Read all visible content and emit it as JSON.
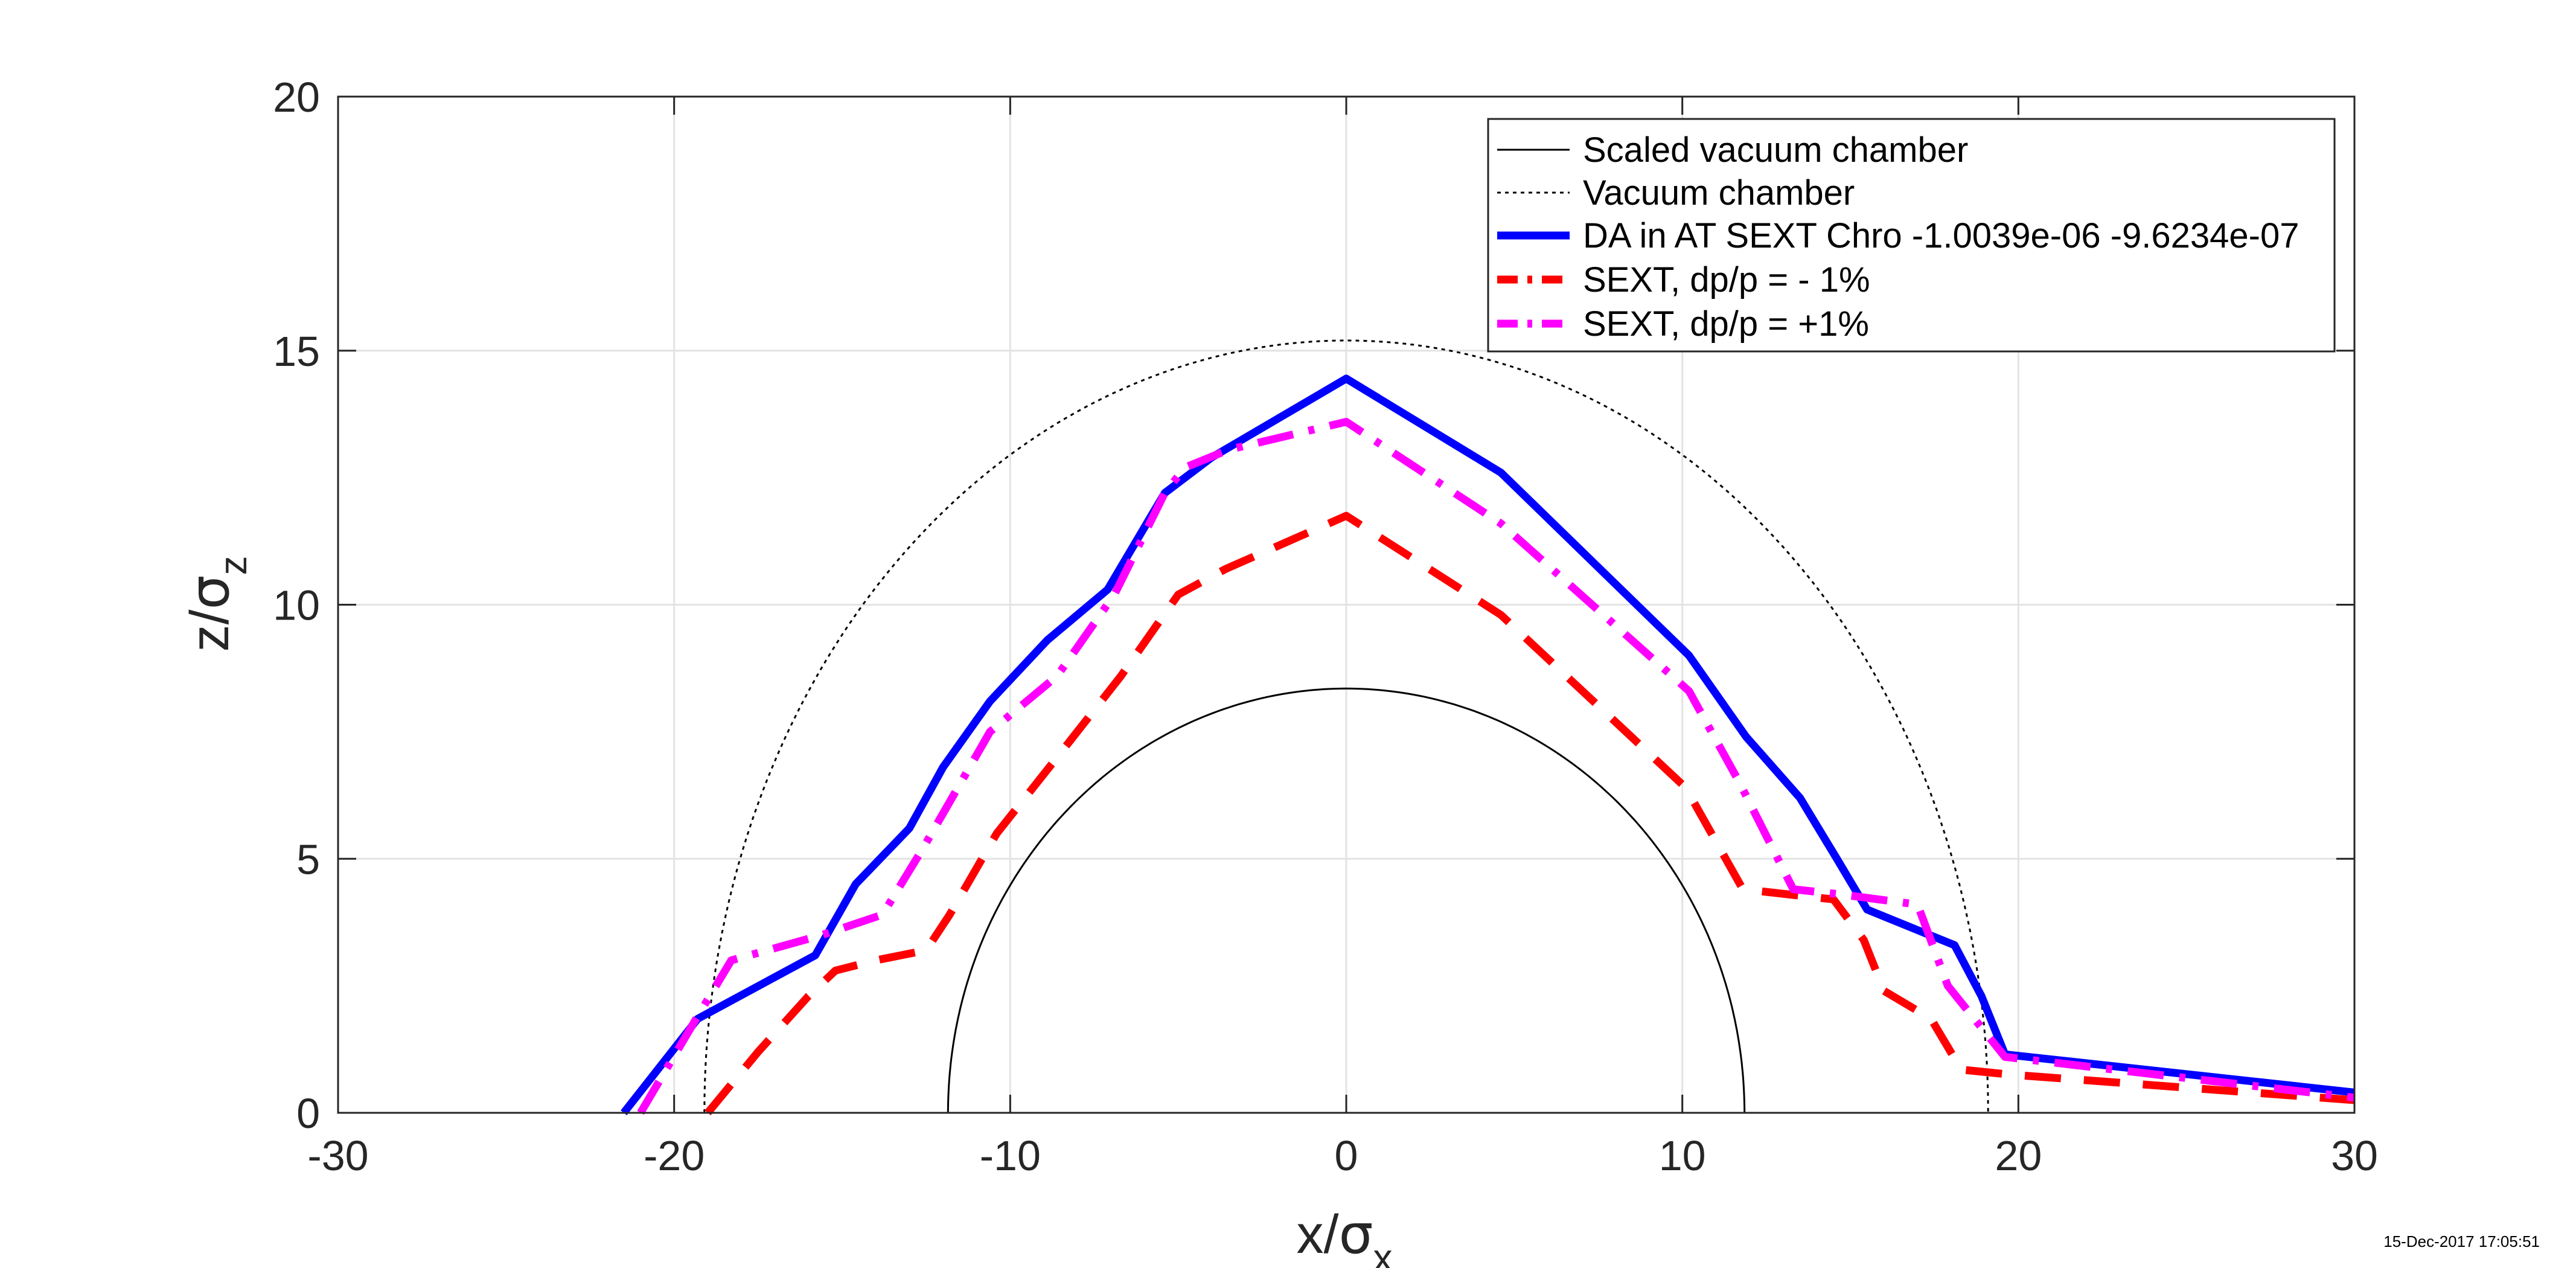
{
  "timestamp": "15-Dec-2017 17:05:51",
  "chart_data": {
    "type": "line",
    "title": "",
    "xlabel": "x/",
    "xlabel_symbol": "σ",
    "xlabel_sub": "x",
    "ylabel": "z/",
    "ylabel_symbol": "σ",
    "ylabel_sub": "z",
    "xlim": [
      -30,
      30
    ],
    "ylim": [
      0,
      20
    ],
    "xticks": [
      -30,
      -20,
      -10,
      0,
      10,
      20,
      30
    ],
    "yticks": [
      0,
      5,
      10,
      15,
      20
    ],
    "xtick_labels": [
      "-30",
      "-20",
      "-10",
      "0",
      "10",
      "20",
      "30"
    ],
    "ytick_labels": [
      "0",
      "5",
      "10",
      "15",
      "20"
    ],
    "grid": true,
    "legend_position": "top-right",
    "series": [
      {
        "name": "Scaled vacuum chamber",
        "color": "#000000",
        "style": "solid",
        "shape": "half-ellipse",
        "semi_axis_x": 11.85,
        "semi_axis_z": 8.35
      },
      {
        "name": "Vacuum chamber",
        "color": "#000000",
        "style": "dotted",
        "shape": "half-ellipse",
        "semi_axis_x": 19.1,
        "semi_axis_z": 15.2
      },
      {
        "name": "DA in AT SEXT Chro -1.0039e-06 -9.6234e-07",
        "color": "#0000FF",
        "style": "solid-thick",
        "x": [
          -21.5,
          -19.3,
          -15.8,
          -14.6,
          -13.0,
          -12.0,
          -10.6,
          -8.9,
          -7.1,
          -5.4,
          -4.0,
          0.0,
          4.6,
          10.2,
          11.9,
          13.5,
          14.6,
          15.5,
          18.1,
          18.9,
          19.6,
          30.0
        ],
        "y": [
          0.0,
          1.85,
          3.1,
          4.5,
          5.6,
          6.8,
          8.1,
          9.3,
          10.3,
          12.2,
          12.9,
          14.45,
          12.6,
          9.0,
          7.4,
          6.2,
          5.0,
          4.0,
          3.3,
          2.3,
          1.15,
          0.4
        ]
      },
      {
        "name": "SEXT, dp/p = - 1%",
        "color": "#FF0000",
        "style": "dashed",
        "x": [
          -19.0,
          -17.5,
          -16.0,
          -15.2,
          -14.0,
          -12.5,
          -11.8,
          -10.4,
          -8.6,
          -6.7,
          -5.0,
          -3.6,
          0.0,
          4.6,
          8.0,
          10.1,
          11.8,
          14.5,
          15.4,
          16.0,
          17.4,
          18.3,
          19.8,
          30.0
        ],
        "y": [
          0.0,
          1.2,
          2.3,
          2.8,
          3.0,
          3.2,
          3.9,
          5.5,
          7.0,
          8.6,
          10.2,
          10.7,
          11.75,
          9.8,
          7.7,
          6.4,
          4.4,
          4.2,
          3.4,
          2.4,
          1.85,
          0.85,
          0.75,
          0.25
        ]
      },
      {
        "name": "SEXT, dp/p = +1%",
        "color": "#FF00FF",
        "style": "dash-dot",
        "x": [
          -21.0,
          -19.3,
          -18.3,
          -15.6,
          -13.8,
          -12.6,
          -10.6,
          -8.6,
          -6.9,
          -5.4,
          -4.8,
          -3.5,
          0.0,
          4.6,
          10.2,
          11.7,
          13.3,
          14.7,
          17.0,
          17.9,
          19.6,
          30.0
        ],
        "y": [
          0.0,
          1.9,
          3.0,
          3.5,
          3.9,
          5.2,
          7.5,
          8.6,
          10.2,
          12.2,
          12.7,
          13.05,
          13.6,
          11.6,
          8.3,
          6.5,
          4.4,
          4.3,
          4.1,
          2.5,
          1.1,
          0.3
        ]
      }
    ]
  }
}
